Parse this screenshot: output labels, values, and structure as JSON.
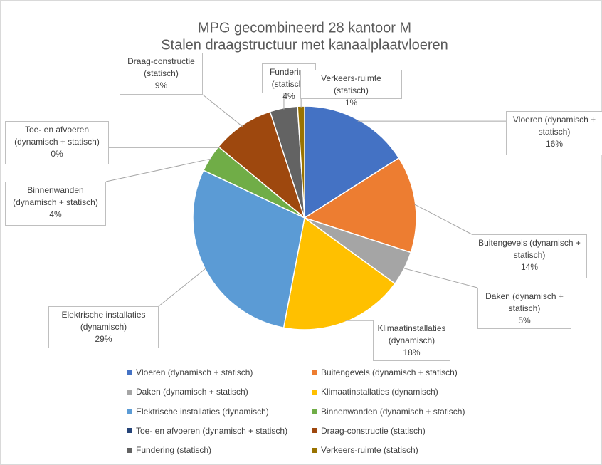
{
  "chart_data": {
    "type": "pie",
    "title": "MPG gecombineerd 28 kantoor M",
    "subtitle": "Stalen draagstructuur met kanaalplaatvloeren",
    "categories": [
      "Vloeren (dynamisch + statisch)",
      "Buitengevels (dynamisch + statisch)",
      "Daken (dynamisch + statisch)",
      "Klimaatinstallaties (dynamisch)",
      "Elektrische installaties (dynamisch)",
      "Binnenwanden (dynamisch + statisch)",
      "Toe- en afvoeren (dynamisch + statisch)",
      "Draag-constructie (statisch)",
      "Fundering (statisch)",
      "Verkeers-ruimte (statisch)"
    ],
    "values": [
      16,
      14,
      5,
      18,
      29,
      4,
      0,
      9,
      4,
      1
    ],
    "value_labels": [
      "16%",
      "14%",
      "5%",
      "18%",
      "29%",
      "4%",
      "0%",
      "9%",
      "4%",
      "1%"
    ],
    "colors": [
      "#4472c4",
      "#ed7d31",
      "#a5a5a5",
      "#ffc000",
      "#5b9bd5",
      "#70ad47",
      "#264478",
      "#9e480e",
      "#636363",
      "#997300"
    ],
    "legend": "bottom"
  }
}
